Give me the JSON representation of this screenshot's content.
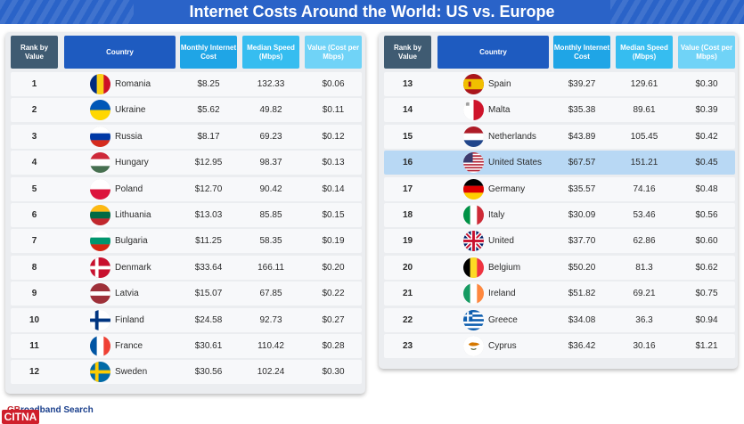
{
  "title": "Internet Costs Around the World: US vs. Europe",
  "headers": {
    "rank": "Rank by Value",
    "country": "Country",
    "cost": "Monthly Internet Cost",
    "speed": "Median Speed (Mbps)",
    "value": "Value (Cost per Mbps)"
  },
  "footer": {
    "brand_a": "GB",
    "brand_b": "roadband Search"
  },
  "watermark": "CITNA",
  "highlight_color": "#b8d8f4",
  "chart_data": {
    "type": "table",
    "title": "Internet Costs Around the World: US vs. Europe",
    "columns": [
      "Rank by Value",
      "Country",
      "Monthly Internet Cost",
      "Median Speed (Mbps)",
      "Value (Cost per Mbps)"
    ],
    "highlighted_row": "United States",
    "left_table": [
      {
        "rank": "1",
        "country": "Romania",
        "cost": "$8.25",
        "speed": "132.33",
        "value": "$0.06",
        "flag": "romania-flag-icon"
      },
      {
        "rank": "2",
        "country": "Ukraine",
        "cost": "$5.62",
        "speed": "49.82",
        "value": "$0.11",
        "flag": "ukraine-flag-icon"
      },
      {
        "rank": "3",
        "country": "Russia",
        "cost": "$8.17",
        "speed": "69.23",
        "value": "$0.12",
        "flag": "russia-flag-icon"
      },
      {
        "rank": "4",
        "country": "Hungary",
        "cost": "$12.95",
        "speed": "98.37",
        "value": "$0.13",
        "flag": "hungary-flag-icon"
      },
      {
        "rank": "5",
        "country": "Poland",
        "cost": "$12.70",
        "speed": "90.42",
        "value": "$0.14",
        "flag": "poland-flag-icon"
      },
      {
        "rank": "6",
        "country": "Lithuania",
        "cost": "$13.03",
        "speed": "85.85",
        "value": "$0.15",
        "flag": "lithuania-flag-icon"
      },
      {
        "rank": "7",
        "country": "Bulgaria",
        "cost": "$11.25",
        "speed": "58.35",
        "value": "$0.19",
        "flag": "bulgaria-flag-icon"
      },
      {
        "rank": "8",
        "country": "Denmark",
        "cost": "$33.64",
        "speed": "166.11",
        "value": "$0.20",
        "flag": "denmark-flag-icon"
      },
      {
        "rank": "9",
        "country": "Latvia",
        "cost": "$15.07",
        "speed": "67.85",
        "value": "$0.22",
        "flag": "latvia-flag-icon"
      },
      {
        "rank": "10",
        "country": "Finland",
        "cost": "$24.58",
        "speed": "92.73",
        "value": "$0.27",
        "flag": "finland-flag-icon"
      },
      {
        "rank": "11",
        "country": "France",
        "cost": "$30.61",
        "speed": "110.42",
        "value": "$0.28",
        "flag": "france-flag-icon"
      },
      {
        "rank": "12",
        "country": "Sweden",
        "cost": "$30.56",
        "speed": "102.24",
        "value": "$0.30",
        "flag": "sweden-flag-icon"
      }
    ],
    "right_table": [
      {
        "rank": "13",
        "country": "Spain",
        "cost": "$39.27",
        "speed": "129.61",
        "value": "$0.30",
        "flag": "spain-flag-icon"
      },
      {
        "rank": "14",
        "country": "Malta",
        "cost": "$35.38",
        "speed": "89.61",
        "value": "$0.39",
        "flag": "malta-flag-icon"
      },
      {
        "rank": "15",
        "country": "Netherlands",
        "cost": "$43.89",
        "speed": "105.45",
        "value": "$0.42",
        "flag": "netherlands-flag-icon"
      },
      {
        "rank": "16",
        "country": "United States",
        "cost": "$67.57",
        "speed": "151.21",
        "value": "$0.45",
        "flag": "united-states-flag-icon"
      },
      {
        "rank": "17",
        "country": "Germany",
        "cost": "$35.57",
        "speed": "74.16",
        "value": "$0.48",
        "flag": "germany-flag-icon"
      },
      {
        "rank": "18",
        "country": "Italy",
        "cost": "$30.09",
        "speed": "53.46",
        "value": "$0.56",
        "flag": "italy-flag-icon"
      },
      {
        "rank": "19",
        "country": "United Kingdom",
        "cost": "$37.70",
        "speed": "62.86",
        "value": "$0.60",
        "flag": "united-kingdom-flag-icon"
      },
      {
        "rank": "20",
        "country": "Belgium",
        "cost": "$50.20",
        "speed": "81.3",
        "value": "$0.62",
        "flag": "belgium-flag-icon"
      },
      {
        "rank": "21",
        "country": "Ireland",
        "cost": "$51.82",
        "speed": "69.21",
        "value": "$0.75",
        "flag": "ireland-flag-icon"
      },
      {
        "rank": "22",
        "country": "Greece",
        "cost": "$34.08",
        "speed": "36.3",
        "value": "$0.94",
        "flag": "greece-flag-icon"
      },
      {
        "rank": "23",
        "country": "Cyprus",
        "cost": "$36.42",
        "speed": "30.16",
        "value": "$1.21",
        "flag": "cyprus-flag-icon"
      }
    ]
  }
}
